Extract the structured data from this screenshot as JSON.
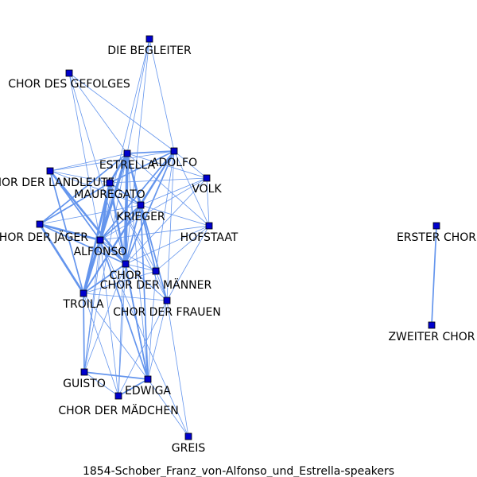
{
  "caption": "1854-Schober_Franz_von-Alfonso_und_Estrella-speakers",
  "colors": {
    "edge": "#6495ED",
    "node_fill": "#0000CD",
    "node_stroke": "#000000",
    "text": "#000000"
  },
  "nodes": [
    {
      "id": "die-begleiter",
      "label": "DIE BEGLEITER"
    },
    {
      "id": "chor-des-gefolges",
      "label": "CHOR DES GEFOLGES"
    },
    {
      "id": "estrella",
      "label": "ESTRELLA"
    },
    {
      "id": "adolfo",
      "label": "ADOLFO"
    },
    {
      "id": "chor-der-landleute",
      "label": "CHOR DER LANDLEUTE"
    },
    {
      "id": "mauregato",
      "label": "MAUREGATO"
    },
    {
      "id": "volk",
      "label": "VOLK"
    },
    {
      "id": "krieger",
      "label": "KRIEGER"
    },
    {
      "id": "chor-der-jaeger",
      "label": "CHOR DER JÄGER"
    },
    {
      "id": "hofstaat",
      "label": "HOFSTAAT"
    },
    {
      "id": "alfonso",
      "label": "ALFONSO"
    },
    {
      "id": "chor",
      "label": "CHOR"
    },
    {
      "id": "chor-der-maenner",
      "label": "CHOR DER MÄNNER"
    },
    {
      "id": "troila",
      "label": "TROILA"
    },
    {
      "id": "chor-der-frauen",
      "label": "CHOR DER FRAUEN"
    },
    {
      "id": "guisto",
      "label": "GUISTO"
    },
    {
      "id": "edwiga",
      "label": "EDWIGA"
    },
    {
      "id": "chor-der-maedchen",
      "label": "CHOR DER MÄDCHEN"
    },
    {
      "id": "greis",
      "label": "GREIS"
    },
    {
      "id": "erster-chor",
      "label": "ERSTER CHOR"
    },
    {
      "id": "zweiter-chor",
      "label": "ZWEITER CHOR"
    }
  ],
  "edges": [
    [
      "die-begleiter",
      "estrella",
      1
    ],
    [
      "die-begleiter",
      "adolfo",
      1
    ],
    [
      "die-begleiter",
      "alfonso",
      1
    ],
    [
      "die-begleiter",
      "chor",
      1
    ],
    [
      "chor-des-gefolges",
      "estrella",
      1
    ],
    [
      "chor-des-gefolges",
      "adolfo",
      1
    ],
    [
      "chor-des-gefolges",
      "alfonso",
      1
    ],
    [
      "chor-des-gefolges",
      "chor",
      1
    ],
    [
      "estrella",
      "adolfo",
      2
    ],
    [
      "estrella",
      "mauregato",
      3
    ],
    [
      "estrella",
      "krieger",
      2
    ],
    [
      "estrella",
      "chor-der-landleute",
      1
    ],
    [
      "estrella",
      "volk",
      1
    ],
    [
      "estrella",
      "hofstaat",
      1
    ],
    [
      "estrella",
      "chor-der-jaeger",
      2
    ],
    [
      "estrella",
      "alfonso",
      4
    ],
    [
      "estrella",
      "chor",
      4
    ],
    [
      "estrella",
      "chor-der-maenner",
      2
    ],
    [
      "estrella",
      "troila",
      3
    ],
    [
      "estrella",
      "chor-der-frauen",
      2
    ],
    [
      "estrella",
      "guisto",
      1
    ],
    [
      "estrella",
      "edwiga",
      1
    ],
    [
      "estrella",
      "chor-der-maedchen",
      1
    ],
    [
      "adolfo",
      "mauregato",
      2
    ],
    [
      "adolfo",
      "krieger",
      2
    ],
    [
      "adolfo",
      "volk",
      1
    ],
    [
      "adolfo",
      "hofstaat",
      1
    ],
    [
      "adolfo",
      "alfonso",
      2
    ],
    [
      "adolfo",
      "chor",
      2
    ],
    [
      "adolfo",
      "chor-der-maenner",
      1
    ],
    [
      "adolfo",
      "troila",
      2
    ],
    [
      "adolfo",
      "chor-der-frauen",
      1
    ],
    [
      "adolfo",
      "chor-der-landleute",
      1
    ],
    [
      "chor-der-landleute",
      "mauregato",
      1
    ],
    [
      "chor-der-landleute",
      "alfonso",
      2
    ],
    [
      "chor-der-landleute",
      "chor",
      3
    ],
    [
      "chor-der-landleute",
      "troila",
      2
    ],
    [
      "chor-der-landleute",
      "krieger",
      1
    ],
    [
      "mauregato",
      "krieger",
      2
    ],
    [
      "mauregato",
      "volk",
      1
    ],
    [
      "mauregato",
      "chor-der-jaeger",
      2
    ],
    [
      "mauregato",
      "alfonso",
      3
    ],
    [
      "mauregato",
      "chor",
      3
    ],
    [
      "mauregato",
      "troila",
      3
    ],
    [
      "mauregato",
      "chor-der-maenner",
      1
    ],
    [
      "mauregato",
      "chor-der-frauen",
      1
    ],
    [
      "mauregato",
      "edwiga",
      2
    ],
    [
      "mauregato",
      "guisto",
      1
    ],
    [
      "volk",
      "krieger",
      1
    ],
    [
      "volk",
      "chor",
      1
    ],
    [
      "volk",
      "alfonso",
      1
    ],
    [
      "volk",
      "hofstaat",
      1
    ],
    [
      "krieger",
      "chor-der-jaeger",
      1
    ],
    [
      "krieger",
      "alfonso",
      2
    ],
    [
      "krieger",
      "chor",
      2
    ],
    [
      "krieger",
      "hofstaat",
      1
    ],
    [
      "krieger",
      "troila",
      2
    ],
    [
      "krieger",
      "chor-der-maenner",
      1
    ],
    [
      "krieger",
      "chor-der-frauen",
      1
    ],
    [
      "krieger",
      "edwiga",
      2
    ],
    [
      "chor-der-jaeger",
      "alfonso",
      3
    ],
    [
      "chor-der-jaeger",
      "troila",
      3
    ],
    [
      "chor-der-jaeger",
      "chor",
      2
    ],
    [
      "hofstaat",
      "chor",
      1
    ],
    [
      "hofstaat",
      "chor-der-maenner",
      1
    ],
    [
      "hofstaat",
      "alfonso",
      1
    ],
    [
      "hofstaat",
      "chor-der-frauen",
      1
    ],
    [
      "alfonso",
      "chor",
      2
    ],
    [
      "alfonso",
      "troila",
      4
    ],
    [
      "alfonso",
      "chor-der-maenner",
      1
    ],
    [
      "alfonso",
      "chor-der-frauen",
      1
    ],
    [
      "alfonso",
      "guisto",
      1
    ],
    [
      "alfonso",
      "edwiga",
      2
    ],
    [
      "alfonso",
      "chor-der-maedchen",
      1
    ],
    [
      "alfonso",
      "greis",
      1
    ],
    [
      "chor",
      "chor-der-maenner",
      1
    ],
    [
      "chor",
      "troila",
      2
    ],
    [
      "chor",
      "chor-der-frauen",
      1
    ],
    [
      "chor",
      "guisto",
      1
    ],
    [
      "chor",
      "edwiga",
      2
    ],
    [
      "chor",
      "chor-der-maedchen",
      1
    ],
    [
      "chor-der-maenner",
      "chor-der-frauen",
      1
    ],
    [
      "chor-der-maenner",
      "troila",
      1
    ],
    [
      "chor-der-maenner",
      "edwiga",
      1
    ],
    [
      "troila",
      "chor-der-frauen",
      1
    ],
    [
      "troila",
      "guisto",
      2
    ],
    [
      "troila",
      "edwiga",
      1
    ],
    [
      "troila",
      "chor-der-maedchen",
      1
    ],
    [
      "chor-der-frauen",
      "edwiga",
      1
    ],
    [
      "chor-der-frauen",
      "chor-der-maedchen",
      1
    ],
    [
      "chor-der-frauen",
      "greis",
      1
    ],
    [
      "guisto",
      "edwiga",
      2
    ],
    [
      "guisto",
      "chor-der-maedchen",
      1
    ],
    [
      "edwiga",
      "chor-der-maedchen",
      2
    ],
    [
      "edwiga",
      "greis",
      1
    ],
    [
      "erster-chor",
      "zweiter-chor",
      2
    ]
  ]
}
